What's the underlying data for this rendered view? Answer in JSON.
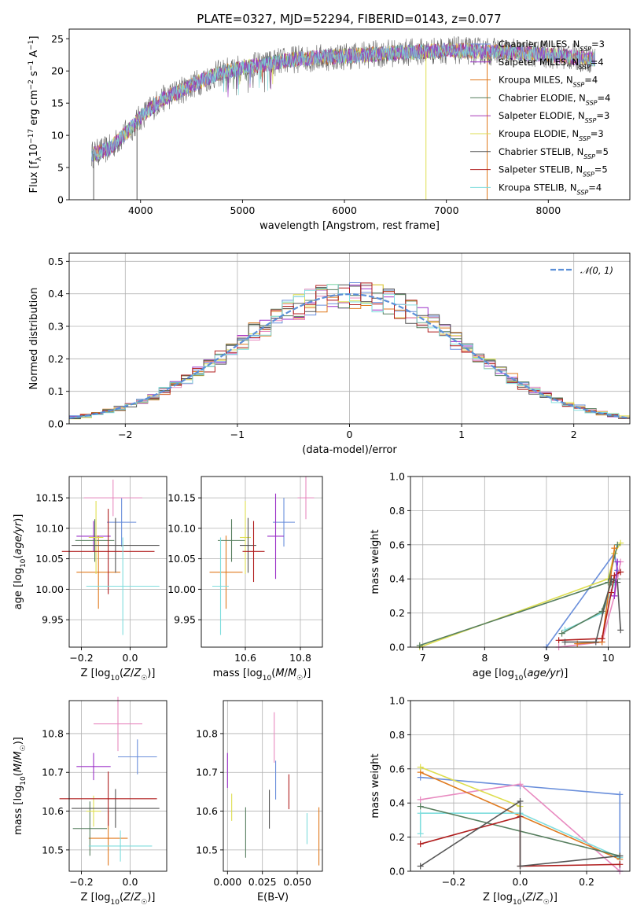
{
  "figure": {
    "title": "PLATE=0327, MJD=52294, FIBERID=0143, z=0.077"
  },
  "colors": {
    "chabrier_miles": "#6a8fdb",
    "salpeter_miles": "#9b30c8",
    "kroupa_miles": "#e07a1f",
    "chabrier_elodie": "#567e5e",
    "salpeter_elodie": "#a838b8",
    "kroupa_elodie": "#dede50",
    "chabrier_stelib": "#555555",
    "salpeter_stelib": "#b01e1e",
    "kroupa_stelib": "#7fdddd",
    "pink": "#e88ac0",
    "normal": "#5b8fd8"
  },
  "chart_data": [
    {
      "type": "line",
      "name": "spectrum",
      "xlabel": "wavelength [Angstrom, rest frame]",
      "ylabel": "Flux [f_λ 10^-17 erg cm^-2 s^-1 A^-1]",
      "xlim": [
        3300,
        8800
      ],
      "ylim": [
        0,
        26.5
      ],
      "xticks": [
        "4000",
        "5000",
        "6000",
        "7000",
        "8000"
      ],
      "yticks": [
        "0",
        "5",
        "10",
        "15",
        "20",
        "25"
      ],
      "legend_position": "top-right",
      "legend": [
        "Chabrier MILES, N_SSP=3",
        "Salpeter MILES, N_SSP=4",
        "Kroupa MILES, N_SSP=4",
        "Chabrier ELODIE, N_SSP=4",
        "Salpeter ELODIE, N_SSP=3",
        "Kroupa ELODIE, N_SSP=3",
        "Chabrier STELIB, N_SSP=5",
        "Salpeter STELIB, N_SSP=5",
        "Kroupa STELIB, N_SSP=4"
      ],
      "data_range": [
        3520,
        8460
      ],
      "continuum": [
        [
          3520,
          7
        ],
        [
          3700,
          8
        ],
        [
          3900,
          11
        ],
        [
          4000,
          12.8
        ],
        [
          4200,
          15.5
        ],
        [
          4400,
          17
        ],
        [
          4600,
          18.5
        ],
        [
          4800,
          19.8
        ],
        [
          5000,
          20.5
        ],
        [
          5200,
          21
        ],
        [
          5500,
          21.8
        ],
        [
          6000,
          22.3
        ],
        [
          6500,
          22.8
        ],
        [
          7000,
          23.2
        ],
        [
          7500,
          23.0
        ],
        [
          8000,
          22.5
        ],
        [
          8460,
          21.8
        ]
      ],
      "drops": [
        [
          3540,
          0
        ],
        [
          3965,
          0
        ],
        [
          6800,
          0
        ],
        [
          7400,
          0
        ]
      ],
      "grid": false
    },
    {
      "type": "histogram",
      "name": "residuals",
      "xlabel": "(data-model)/error",
      "ylabel": "Normed distribution",
      "xlim": [
        -2.5,
        2.5
      ],
      "ylim": [
        0,
        0.525
      ],
      "xticks": [
        -2,
        -1,
        0,
        1,
        2
      ],
      "yticks": [
        0,
        0.1,
        0.2,
        0.3,
        0.4,
        0.5
      ],
      "xtick_labels": [
        "−2",
        "−1",
        "0",
        "1",
        "2"
      ],
      "ytick_labels": [
        "0.0",
        "0.1",
        "0.2",
        "0.3",
        "0.4",
        "0.5"
      ],
      "bin_width": 0.1,
      "grid": true,
      "legend_position": "top-right",
      "legend": [
        "𝒩(0, 1)"
      ],
      "reference_curve": "normal(0,1)"
    },
    {
      "type": "scatter",
      "name": "age_vs_Z",
      "xlabel": "Z [log10(Z/Z☉)]",
      "ylabel": "age  [log10(age/yr)]",
      "xlim": [
        -0.25,
        0.15
      ],
      "ylim": [
        9.905,
        10.185
      ],
      "xticks": [
        -0.2,
        0.0
      ],
      "xtick_labels": [
        "−0.2",
        "0.0"
      ],
      "yticks": [
        9.95,
        10.0,
        10.05,
        10.1,
        10.15
      ],
      "ytick_labels": [
        "9.95",
        "10.00",
        "10.05",
        "10.10",
        "10.15"
      ],
      "points": [
        {
          "x": -0.035,
          "xerr": 0.06,
          "y": 10.11,
          "yerr": 0.04,
          "color": "chabrier_miles"
        },
        {
          "x": -0.15,
          "xerr": 0.07,
          "y": 10.087,
          "yerr": 0.025,
          "color": "salpeter_miles"
        },
        {
          "x": -0.13,
          "xerr": 0.09,
          "y": 10.028,
          "yerr": 0.06,
          "color": "kroupa_miles"
        },
        {
          "x": -0.145,
          "xerr": 0.08,
          "y": 10.08,
          "yerr": 0.035,
          "color": "chabrier_elodie"
        },
        {
          "x": -0.07,
          "xerr": 0.12,
          "y": 10.15,
          "yerr": 0.03,
          "color": "pink"
        },
        {
          "x": -0.14,
          "xerr": 0.03,
          "y": 10.085,
          "yerr": 0.06,
          "color": "kroupa_elodie"
        },
        {
          "x": -0.06,
          "xerr": 0.18,
          "y": 10.072,
          "yerr": 0.045,
          "color": "chabrier_stelib"
        },
        {
          "x": -0.09,
          "xerr": 0.19,
          "y": 10.062,
          "yerr": 0.07,
          "color": "salpeter_stelib"
        },
        {
          "x": -0.03,
          "xerr": 0.15,
          "y": 10.005,
          "yerr": 0.08,
          "color": "kroupa_stelib"
        }
      ]
    },
    {
      "type": "scatter",
      "name": "age_vs_mass",
      "xlabel": "mass [log10(M/M☉)]",
      "ylabel": "",
      "xlim": [
        10.44,
        10.88
      ],
      "ylim": [
        9.905,
        10.185
      ],
      "xticks": [
        10.6,
        10.8
      ],
      "xtick_labels": [
        "10.6",
        "10.8"
      ],
      "yticks": [
        9.95,
        10.0,
        10.05,
        10.1,
        10.15
      ],
      "ytick_labels": [
        "9.95",
        "10.00",
        "10.05",
        "10.10",
        "10.15"
      ],
      "points": [
        {
          "x": 10.74,
          "xerr": 0.04,
          "y": 10.11,
          "yerr": 0.04,
          "color": "chabrier_miles"
        },
        {
          "x": 10.71,
          "xerr": 0.03,
          "y": 10.087,
          "yerr": 0.07,
          "color": "salpeter_miles"
        },
        {
          "x": 10.53,
          "xerr": 0.06,
          "y": 10.028,
          "yerr": 0.06,
          "color": "kroupa_miles"
        },
        {
          "x": 10.55,
          "xerr": 0.05,
          "y": 10.08,
          "yerr": 0.035,
          "color": "chabrier_elodie"
        },
        {
          "x": 10.82,
          "xerr": 0.03,
          "y": 10.15,
          "yerr": 0.035,
          "color": "pink"
        },
        {
          "x": 10.6,
          "xerr": 0.02,
          "y": 10.085,
          "yerr": 0.06,
          "color": "kroupa_elodie"
        },
        {
          "x": 10.61,
          "xerr": 0.03,
          "y": 10.072,
          "yerr": 0.045,
          "color": "chabrier_stelib"
        },
        {
          "x": 10.63,
          "xerr": 0.04,
          "y": 10.062,
          "yerr": 0.05,
          "color": "salpeter_stelib"
        },
        {
          "x": 10.51,
          "xerr": 0.03,
          "y": 10.005,
          "yerr": 0.08,
          "color": "kroupa_stelib"
        }
      ]
    },
    {
      "type": "line",
      "name": "mass_weight_vs_age",
      "xlabel": "age  [log10(age/yr)]",
      "ylabel": "mass weight",
      "xlim": [
        6.8,
        10.35
      ],
      "ylim": [
        0,
        1.0
      ],
      "xticks": [
        7,
        8,
        9,
        10
      ],
      "xtick_labels": [
        "7",
        "8",
        "9",
        "10"
      ],
      "yticks": [
        0,
        0.2,
        0.4,
        0.6,
        0.8,
        1.0
      ],
      "ytick_labels": [
        "0.0",
        "0.2",
        "0.4",
        "0.6",
        "0.8",
        "1.0"
      ],
      "grid": true,
      "series": [
        {
          "color": "chabrier_miles",
          "points": [
            [
              9.0,
              0.0
            ],
            [
              10.1,
              0.55
            ],
            [
              10.15,
              0.45
            ]
          ]
        },
        {
          "color": "kroupa_elodie",
          "points": [
            [
              6.95,
              0.0
            ],
            [
              10.0,
              0.4
            ],
            [
              10.1,
              0.55
            ],
            [
              10.2,
              0.61
            ]
          ]
        },
        {
          "color": "chabrier_elodie",
          "points": [
            [
              6.95,
              0.01
            ],
            [
              10.0,
              0.38
            ],
            [
              10.15,
              0.6
            ]
          ]
        },
        {
          "color": "kroupa_stelib",
          "points": [
            [
              9.3,
              0.1
            ],
            [
              9.9,
              0.2
            ],
            [
              10.05,
              0.32
            ],
            [
              10.1,
              0.38
            ]
          ]
        },
        {
          "color": "chabrier_elodie",
          "points": [
            [
              9.25,
              0.08
            ],
            [
              9.9,
              0.21
            ],
            [
              10.05,
              0.38
            ],
            [
              10.15,
              0.4
            ]
          ]
        },
        {
          "color": "pink",
          "points": [
            [
              9.2,
              0.0
            ],
            [
              9.9,
              0.03
            ],
            [
              10.1,
              0.3
            ],
            [
              10.2,
              0.5
            ]
          ]
        },
        {
          "color": "kroupa_miles",
          "points": [
            [
              9.5,
              0.02
            ],
            [
              9.9,
              0.03
            ],
            [
              10.1,
              0.58
            ]
          ]
        },
        {
          "color": "salpeter_stelib",
          "points": [
            [
              9.2,
              0.04
            ],
            [
              9.9,
              0.05
            ],
            [
              10.05,
              0.32
            ],
            [
              10.1,
              0.42
            ],
            [
              10.2,
              0.44
            ]
          ]
        },
        {
          "color": "chabrier_stelib",
          "points": [
            [
              9.3,
              0.03
            ],
            [
              9.8,
              0.03
            ],
            [
              10.05,
              0.4
            ],
            [
              10.15,
              0.38
            ],
            [
              10.2,
              0.1
            ]
          ]
        },
        {
          "color": "salpeter_miles",
          "points": [
            [
              10.1,
              0.3
            ],
            [
              10.15,
              0.5
            ]
          ]
        }
      ]
    },
    {
      "type": "scatter",
      "name": "mass_vs_Z",
      "xlabel": "Z [log10(Z/Z☉)]",
      "ylabel": "mass [log10(M/M☉)]",
      "xlim": [
        -0.25,
        0.15
      ],
      "ylim": [
        10.445,
        10.885
      ],
      "xticks": [
        -0.2,
        0.0
      ],
      "xtick_labels": [
        "−0.2",
        "0.0"
      ],
      "yticks": [
        10.5,
        10.6,
        10.7,
        10.8
      ],
      "ytick_labels": [
        "10.5",
        "10.6",
        "10.7",
        "10.8"
      ],
      "points": [
        {
          "x": 0.03,
          "xerr": 0.08,
          "y": 10.74,
          "yerr": 0.045,
          "color": "chabrier_miles"
        },
        {
          "x": -0.15,
          "xerr": 0.07,
          "y": 10.715,
          "yerr": 0.035,
          "color": "salpeter_miles"
        },
        {
          "x": -0.09,
          "xerr": 0.08,
          "y": 10.53,
          "yerr": 0.07,
          "color": "kroupa_miles"
        },
        {
          "x": -0.165,
          "xerr": 0.07,
          "y": 10.555,
          "yerr": 0.07,
          "color": "chabrier_elodie"
        },
        {
          "x": -0.05,
          "xerr": 0.1,
          "y": 10.825,
          "yerr": 0.07,
          "color": "pink"
        },
        {
          "x": -0.15,
          "xerr": 0.03,
          "y": 10.6,
          "yerr": 0.04,
          "color": "kroupa_elodie"
        },
        {
          "x": -0.06,
          "xerr": 0.18,
          "y": 10.607,
          "yerr": 0.05,
          "color": "chabrier_stelib"
        },
        {
          "x": -0.09,
          "xerr": 0.2,
          "y": 10.632,
          "yerr": 0.07,
          "color": "salpeter_stelib"
        },
        {
          "x": -0.04,
          "xerr": 0.13,
          "y": 10.51,
          "yerr": 0.04,
          "color": "kroupa_stelib"
        }
      ]
    },
    {
      "type": "scatter",
      "name": "mass_vs_ebv",
      "xlabel": "E(B-V)",
      "ylabel": "",
      "xlim": [
        -0.003,
        0.068
      ],
      "ylim": [
        10.445,
        10.885
      ],
      "xticks": [
        0.0,
        0.025,
        0.05
      ],
      "xtick_labels": [
        "0.000",
        "0.025",
        "0.050"
      ],
      "yticks": [
        10.5,
        10.6,
        10.7,
        10.8
      ],
      "ytick_labels": [
        "10.5",
        "10.6",
        "10.7",
        "10.8"
      ],
      "points": [
        {
          "x": 0.0,
          "y": 10.705,
          "yerr": 0.045,
          "color": "salpeter_miles"
        },
        {
          "x": 0.003,
          "y": 10.61,
          "yerr": 0.035,
          "color": "kroupa_elodie"
        },
        {
          "x": 0.013,
          "y": 10.545,
          "yerr": 0.065,
          "color": "chabrier_elodie"
        },
        {
          "x": 0.03,
          "y": 10.605,
          "yerr": 0.05,
          "color": "chabrier_stelib"
        },
        {
          "x": 0.0335,
          "y": 10.79,
          "yerr": 0.065,
          "color": "pink"
        },
        {
          "x": 0.0345,
          "y": 10.68,
          "yerr": 0.05,
          "color": "chabrier_miles"
        },
        {
          "x": 0.044,
          "y": 10.65,
          "yerr": 0.045,
          "color": "salpeter_stelib"
        },
        {
          "x": 0.057,
          "y": 10.555,
          "yerr": 0.04,
          "color": "kroupa_stelib"
        },
        {
          "x": 0.0655,
          "y": 10.535,
          "yerr": 0.075,
          "color": "kroupa_miles"
        }
      ]
    },
    {
      "type": "line",
      "name": "mass_weight_vs_Z",
      "xlabel": "Z [log10(Z/Z☉)]",
      "ylabel": "mass weight",
      "xlim": [
        -0.33,
        0.33
      ],
      "ylim": [
        0,
        1.0
      ],
      "xticks": [
        -0.2,
        0.0,
        0.2
      ],
      "xtick_labels": [
        "−0.2",
        "0.0",
        "0.2"
      ],
      "yticks": [
        0,
        0.2,
        0.4,
        0.6,
        0.8,
        1.0
      ],
      "ytick_labels": [
        "0.0",
        "0.2",
        "0.4",
        "0.6",
        "0.8",
        "1.0"
      ],
      "grid": true,
      "series": [
        {
          "color": "chabrier_miles",
          "points": [
            [
              -0.3,
              0.55
            ],
            [
              0.0,
              0.5
            ],
            [
              0.3,
              0.45
            ],
            [
              0.3,
              0.0
            ]
          ]
        },
        {
          "color": "pink",
          "points": [
            [
              -0.3,
              0.42
            ],
            [
              0.0,
              0.51
            ],
            [
              0.3,
              0.0
            ]
          ]
        },
        {
          "color": "kroupa_miles",
          "points": [
            [
              -0.3,
              0.58
            ],
            [
              0.3,
              0.07
            ]
          ]
        },
        {
          "color": "kroupa_elodie",
          "points": [
            [
              -0.3,
              0.61
            ],
            [
              0.0,
              0.38
            ]
          ]
        },
        {
          "color": "kroupa_stelib",
          "points": [
            [
              -0.3,
              0.22
            ],
            [
              -0.3,
              0.34
            ],
            [
              0.0,
              0.34
            ],
            [
              0.3,
              0.08
            ]
          ]
        },
        {
          "color": "chabrier_elodie",
          "points": [
            [
              -0.3,
              0.38
            ],
            [
              0.3,
              0.09
            ]
          ]
        },
        {
          "color": "salpeter_stelib",
          "points": [
            [
              -0.3,
              0.16
            ],
            [
              0.0,
              0.32
            ],
            [
              0.0,
              0.03
            ],
            [
              0.3,
              0.04
            ]
          ]
        },
        {
          "color": "chabrier_stelib",
          "points": [
            [
              -0.3,
              0.03
            ],
            [
              0.0,
              0.41
            ],
            [
              0.0,
              0.03
            ],
            [
              0.3,
              0.09
            ]
          ]
        }
      ]
    }
  ]
}
